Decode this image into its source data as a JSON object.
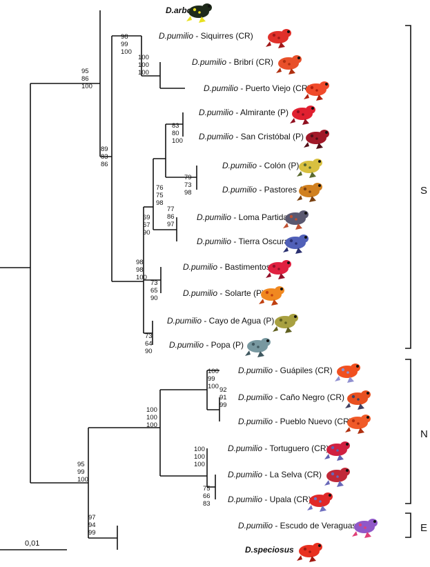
{
  "taxa": [
    {
      "id": "arboreus",
      "species": "D.arboreus",
      "locality": "",
      "color": "#1e2a1a",
      "spot": "#e8e020"
    },
    {
      "id": "siquirres",
      "species": "D.pumilio",
      "locality": " - Siquirres (CR)",
      "color": "#e0302a",
      "spot": "#a01818"
    },
    {
      "id": "bribri",
      "species": "D.pumilio",
      "locality": " - Bribrí (CR)",
      "color": "#e8502a",
      "spot": "#b03010"
    },
    {
      "id": "puertoviejo",
      "species": "D.pumilio",
      "locality": " - Puerto Viejo (CR)",
      "color": "#f04a2a",
      "spot": "#b02010"
    },
    {
      "id": "almirante",
      "species": "D.pumilio",
      "locality": " - Almirante (P)",
      "color": "#e02030",
      "spot": "#901020"
    },
    {
      "id": "sancristobal",
      "species": "D.pumilio",
      "locality": " - San Cristóbal (P)",
      "color": "#a01828",
      "spot": "#501018"
    },
    {
      "id": "colon",
      "species": "D.pumilio",
      "locality": " - Colón (P)",
      "color": "#d8c040",
      "spot": "#5a6a30"
    },
    {
      "id": "pastores",
      "species": "D.pumilio",
      "locality": " - Pastores (P)",
      "color": "#d08020",
      "spot": "#7a4010"
    },
    {
      "id": "lomapartida",
      "species": "D.pumilio",
      "locality": " - Loma Partida (P)",
      "color": "#5a5870",
      "spot": "#c05030"
    },
    {
      "id": "tierraoscura",
      "species": "D.pumilio",
      "locality": " - Tierra Oscura (P)",
      "color": "#5060b8",
      "spot": "#2a3070"
    },
    {
      "id": "bastimentos",
      "species": "D.pumilio",
      "locality": " - Bastimentos (P)",
      "color": "#e02040",
      "spot": "#901028"
    },
    {
      "id": "solarte",
      "species": "D.pumilio",
      "locality": " - Solarte (P)",
      "color": "#f08820",
      "spot": "#c04010"
    },
    {
      "id": "cayodeagua",
      "species": "D.pumilio",
      "locality": " - Cayo de Agua (P)",
      "color": "#a8a040",
      "spot": "#606020"
    },
    {
      "id": "popa",
      "species": "D.pumilio",
      "locality": " - Popa (P)",
      "color": "#7898a0",
      "spot": "#405860"
    },
    {
      "id": "guapiles",
      "species": "D.pumilio",
      "locality": " - Guápiles (CR)",
      "color": "#f05020",
      "spot": "#9090d0"
    },
    {
      "id": "canonegro",
      "species": "D.pumilio",
      "locality": " - Caño Negro (CR)",
      "color": "#e85020",
      "spot": "#404060"
    },
    {
      "id": "pueblonuevo",
      "species": "D.pumilio",
      "locality": " - Pueblo Nuevo (CR)",
      "color": "#f05a28",
      "spot": "#b03010"
    },
    {
      "id": "tortuguero",
      "species": "D.pumilio",
      "locality": " - Tortuguero (CR)",
      "color": "#d02040",
      "spot": "#6060b0"
    },
    {
      "id": "laselva",
      "species": "D.pumilio",
      "locality": " - La Selva (CR)",
      "color": "#c02838",
      "spot": "#6868b8"
    },
    {
      "id": "upala",
      "species": "D.pumilio",
      "locality": " - Upala (CR)",
      "color": "#e02828",
      "spot": "#7070c0"
    },
    {
      "id": "escudo",
      "species": "D.pumilio",
      "locality": " - Escudo de Veraguas (P)",
      "color": "#9058c8",
      "spot": "#e04078"
    },
    {
      "id": "speciosus",
      "species": "D.speciosus",
      "locality": "",
      "color": "#e83020",
      "spot": "#a01810"
    }
  ],
  "support": [
    {
      "id": "n_siq",
      "v": [
        "98",
        "99",
        "100"
      ]
    },
    {
      "id": "n_bri",
      "v": [
        "100",
        "100",
        "100"
      ]
    },
    {
      "id": "n_cr_s",
      "v": [
        "95",
        "86",
        "100"
      ]
    },
    {
      "id": "n_s_inner",
      "v": [
        "89",
        "83",
        "86"
      ]
    },
    {
      "id": "n_alm",
      "v": [
        "83",
        "80",
        "100"
      ]
    },
    {
      "id": "n_colon",
      "v": [
        "79",
        "73",
        "98"
      ]
    },
    {
      "id": "n_upper",
      "v": [
        "76",
        "75",
        "98"
      ]
    },
    {
      "id": "n_loma",
      "v": [
        "77",
        "86",
        "97"
      ]
    },
    {
      "id": "n_mid",
      "v": [
        "69",
        "67",
        "90"
      ]
    },
    {
      "id": "n_bocas",
      "v": [
        "98",
        "98",
        "100"
      ]
    },
    {
      "id": "n_bast",
      "v": [
        "73",
        "65",
        "90"
      ]
    },
    {
      "id": "n_cayo",
      "v": [
        "73",
        "64",
        "90"
      ]
    },
    {
      "id": "n_guap",
      "v": [
        "100",
        "99",
        "100"
      ]
    },
    {
      "id": "n_cano",
      "v": [
        "92",
        "91",
        "99"
      ]
    },
    {
      "id": "n_north",
      "v": [
        "100",
        "100",
        "100"
      ]
    },
    {
      "id": "n_tort",
      "v": [
        "100",
        "100",
        "100"
      ]
    },
    {
      "id": "n_selva",
      "v": [
        "75",
        "66",
        "83"
      ]
    },
    {
      "id": "n_root2",
      "v": [
        "95",
        "99",
        "100"
      ]
    },
    {
      "id": "n_escudo",
      "v": [
        "97",
        "94",
        "99"
      ]
    }
  ],
  "clades": [
    {
      "id": "S",
      "label": "S"
    },
    {
      "id": "N",
      "label": "N"
    },
    {
      "id": "E",
      "label": "E"
    }
  ],
  "scale_bar": {
    "label": "0,01"
  }
}
